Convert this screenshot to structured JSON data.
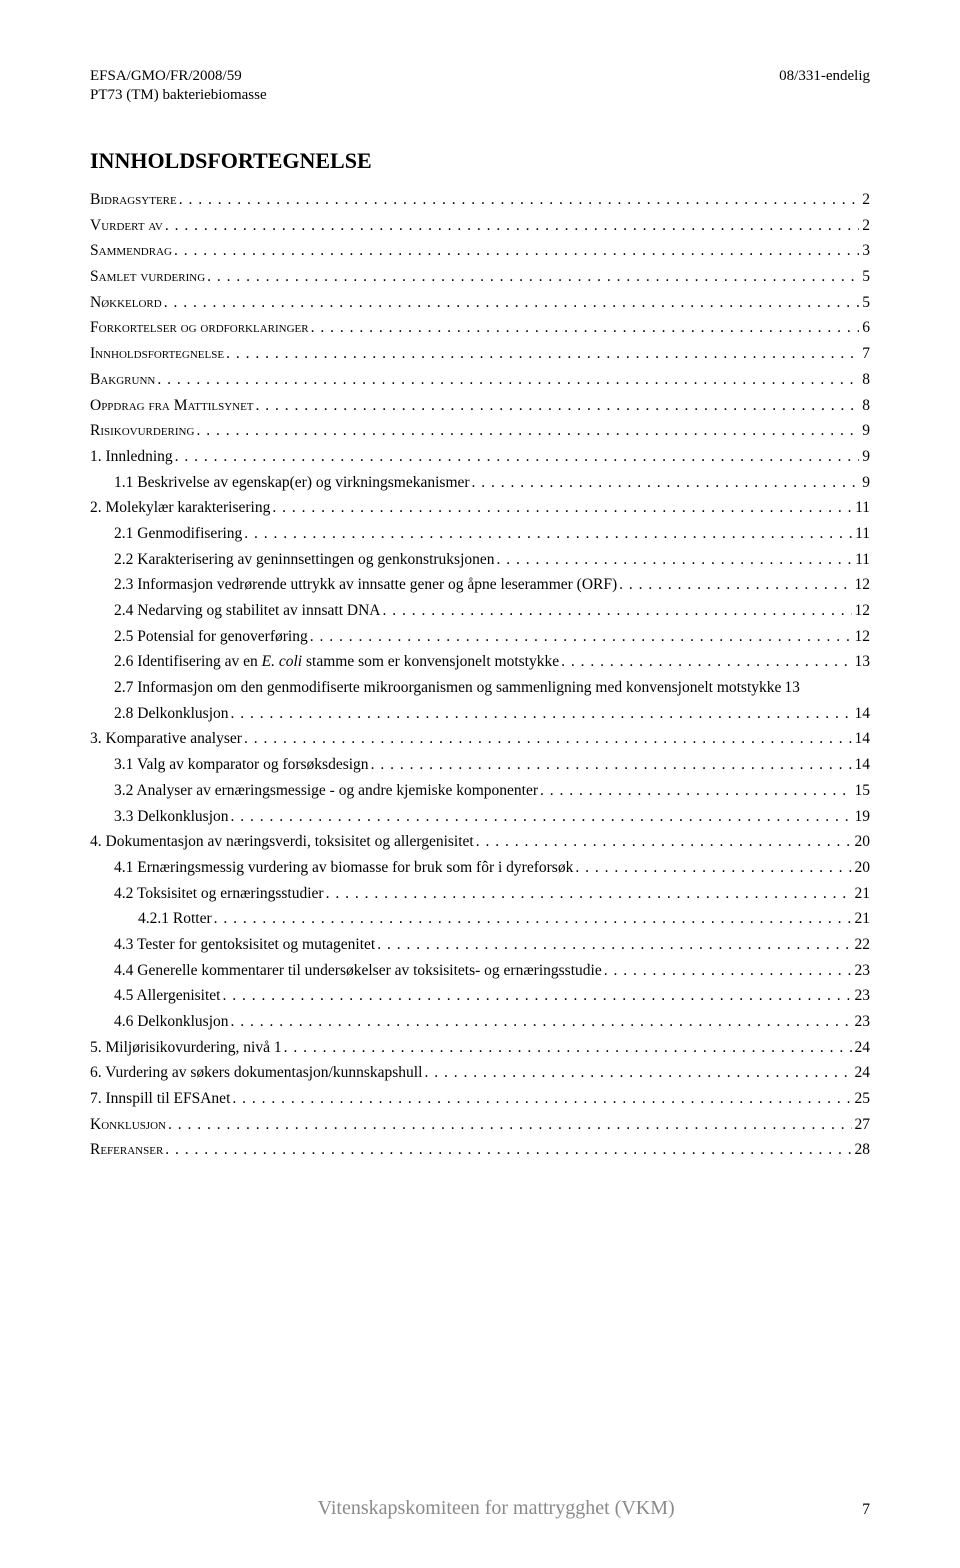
{
  "header": {
    "left1": "EFSA/GMO/FR/2008/59",
    "right1": "08/331-endelig",
    "left2": "PT73 (TM) bakteriebiomasse"
  },
  "title": "INNHOLDSFORTEGNELSE",
  "toc": [
    {
      "label": "Bidragsytere",
      "page": "2",
      "level": 0,
      "smallcaps": true
    },
    {
      "label": "Vurdert av",
      "page": "2",
      "level": 0,
      "smallcaps": true
    },
    {
      "label": "Sammendrag",
      "page": "3",
      "level": 0,
      "smallcaps": true
    },
    {
      "label": "Samlet vurdering",
      "page": "5",
      "level": 0,
      "smallcaps": true
    },
    {
      "label": "Nøkkelord",
      "page": "5",
      "level": 0,
      "smallcaps": true
    },
    {
      "label": "Forkortelser og ordforklaringer",
      "page": "6",
      "level": 0,
      "smallcaps": true
    },
    {
      "label": "Innholdsfortegnelse",
      "page": "7",
      "level": 0,
      "smallcaps": true
    },
    {
      "label": "Bakgrunn",
      "page": "8",
      "level": 0,
      "smallcaps": true
    },
    {
      "label": "Oppdrag fra Mattilsynet",
      "page": "8",
      "level": 0,
      "smallcaps": true
    },
    {
      "label": "Risikovurdering",
      "page": "9",
      "level": 0,
      "smallcaps": true
    },
    {
      "label": "1. Innledning",
      "page": "9",
      "level": 0
    },
    {
      "label": "1.1 Beskrivelse av egenskap(er) og virkningsmekanismer",
      "page": "9",
      "level": 1
    },
    {
      "label": "2. Molekylær karakterisering",
      "page": "11",
      "level": 0
    },
    {
      "label": "2.1 Genmodifisering",
      "page": "11",
      "level": 1
    },
    {
      "label": "2.2 Karakterisering av geninnsettingen og genkonstruksjonen",
      "page": "11",
      "level": 1
    },
    {
      "label": "2.3 Informasjon vedrørende uttrykk av innsatte gener og åpne leserammer (ORF)",
      "page": "12",
      "level": 1
    },
    {
      "label": "2.4 Nedarving og stabilitet av innsatt DNA",
      "page": "12",
      "level": 1
    },
    {
      "label": "2.5 Potensial for genoverføring",
      "page": "12",
      "level": 1
    },
    {
      "label_pre": "2.6 Identifisering av en ",
      "label_italic": "E. coli",
      "label_post": " stamme som er konvensjonelt motstykke",
      "page": "13",
      "level": 1,
      "composed": true
    },
    {
      "label": "2.7 Informasjon om den genmodifiserte mikroorganismen og sammenligning med konvensjonelt motstykke",
      "page": "13",
      "level": 1,
      "nodots": true
    },
    {
      "label": "2.8 Delkonklusjon",
      "page": "14",
      "level": 1
    },
    {
      "label": "3. Komparative analyser",
      "page": "14",
      "level": 0
    },
    {
      "label": "3.1 Valg av komparator og forsøksdesign",
      "page": "14",
      "level": 1
    },
    {
      "label": "3.2 Analyser av ernæringsmessige - og andre kjemiske komponenter",
      "page": "15",
      "level": 1
    },
    {
      "label": "3.3 Delkonklusjon",
      "page": "19",
      "level": 1
    },
    {
      "label": "4. Dokumentasjon av næringsverdi, toksisitet og allergenisitet",
      "page": "20",
      "level": 0
    },
    {
      "label": "4.1 Ernæringsmessig vurdering av biomasse for bruk som fôr i dyreforsøk",
      "page": "20",
      "level": 1
    },
    {
      "label": "4.2 Toksisitet og ernæringsstudier",
      "page": "21",
      "level": 1
    },
    {
      "label": "4.2.1 Rotter",
      "page": "21",
      "level": 2
    },
    {
      "label": "4.3 Tester for gentoksisitet og mutagenitet",
      "page": "22",
      "level": 1
    },
    {
      "label": "4.4 Generelle kommentarer til undersøkelser av toksisitets- og ernæringsstudie",
      "page": "23",
      "level": 1
    },
    {
      "label": "4.5 Allergenisitet",
      "page": "23",
      "level": 1
    },
    {
      "label": "4.6 Delkonklusjon",
      "page": "23",
      "level": 1
    },
    {
      "label": "5. Miljørisikovurdering, nivå 1",
      "page": "24",
      "level": 0
    },
    {
      "label": "6. Vurdering av søkers dokumentasjon/kunnskapshull",
      "page": "24",
      "level": 0
    },
    {
      "label": "7. Innspill til EFSAnet",
      "page": "25",
      "level": 0
    },
    {
      "label": "Konklusjon",
      "page": "27",
      "level": 0,
      "smallcaps": true
    },
    {
      "label": "Referanser",
      "page": "28",
      "level": 0,
      "smallcaps": true
    }
  ],
  "footer": {
    "center": "Vitenskapskomiteen for mattrygghet (VKM)",
    "page": "7"
  }
}
